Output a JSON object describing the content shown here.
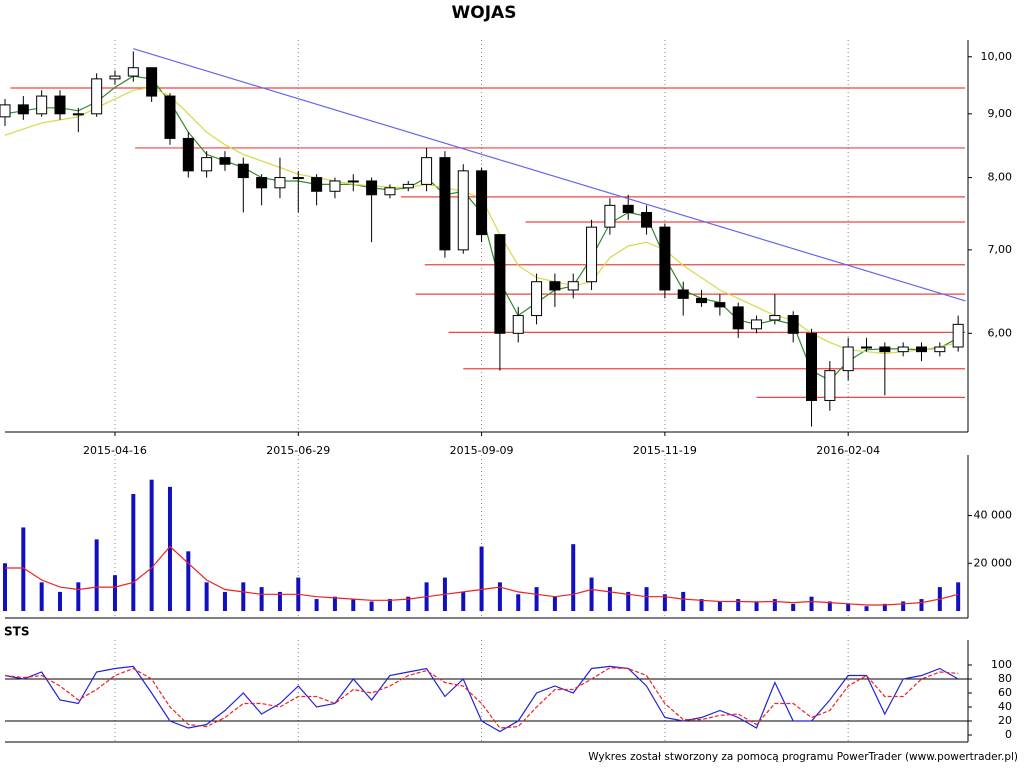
{
  "chart_data": [
    {
      "type": "candlestick",
      "title": "WOJAS",
      "categories": [
        null,
        null,
        null,
        null,
        null,
        null,
        "2015-04-16",
        null,
        null,
        null,
        null,
        null,
        null,
        null,
        null,
        null,
        "2015-06-29",
        null,
        null,
        null,
        null,
        null,
        null,
        null,
        null,
        null,
        "2015-09-09",
        null,
        null,
        null,
        null,
        null,
        null,
        null,
        null,
        null,
        "2015-11-19",
        null,
        null,
        null,
        null,
        null,
        null,
        null,
        null,
        null,
        "2016-02-04",
        null,
        null,
        null,
        null,
        null,
        null
      ],
      "open": [
        8.95,
        9.15,
        9.0,
        9.3,
        9.0,
        9.0,
        9.6,
        9.65,
        9.8,
        9.3,
        8.6,
        8.1,
        8.3,
        8.2,
        8.0,
        7.85,
        8.0,
        8.0,
        7.8,
        7.95,
        7.95,
        7.75,
        7.85,
        7.9,
        8.3,
        7.0,
        8.1,
        7.2,
        6.0,
        6.2,
        6.6,
        6.5,
        6.6,
        7.3,
        7.6,
        7.5,
        7.3,
        6.5,
        6.4,
        6.35,
        6.3,
        6.05,
        6.15,
        6.2,
        6.0,
        5.3,
        5.6,
        5.85,
        5.85,
        5.8,
        5.85,
        5.8,
        5.85
      ],
      "high": [
        9.25,
        9.3,
        9.4,
        9.4,
        9.1,
        9.7,
        9.75,
        10.1,
        9.8,
        9.35,
        8.7,
        8.4,
        8.4,
        8.3,
        8.05,
        8.3,
        8.1,
        8.05,
        8.0,
        8.05,
        8.0,
        7.9,
        7.95,
        8.45,
        8.4,
        8.2,
        8.15,
        7.2,
        6.3,
        6.7,
        6.7,
        6.7,
        7.4,
        7.7,
        7.75,
        7.6,
        7.35,
        6.6,
        6.5,
        6.45,
        6.35,
        6.2,
        6.45,
        6.25,
        6.05,
        5.7,
        5.95,
        5.95,
        5.9,
        5.9,
        5.9,
        5.9,
        6.2
      ],
      "low": [
        8.8,
        8.9,
        8.95,
        8.9,
        8.7,
        8.95,
        9.5,
        9.55,
        9.2,
        8.5,
        8.0,
        8.0,
        8.1,
        7.5,
        7.6,
        7.7,
        7.5,
        7.6,
        7.7,
        7.8,
        7.1,
        7.7,
        7.8,
        7.8,
        6.9,
        6.95,
        7.1,
        5.6,
        5.9,
        6.1,
        6.3,
        6.4,
        6.5,
        7.2,
        7.4,
        7.2,
        6.4,
        6.2,
        6.3,
        6.2,
        5.95,
        6.0,
        6.1,
        5.9,
        5.05,
        5.2,
        5.5,
        5.8,
        5.35,
        5.75,
        5.7,
        5.75,
        5.8
      ],
      "close": [
        9.15,
        9.0,
        9.3,
        9.0,
        9.0,
        9.6,
        9.65,
        9.8,
        9.3,
        8.6,
        8.1,
        8.3,
        8.2,
        8.0,
        7.85,
        8.0,
        8.0,
        7.8,
        7.95,
        7.95,
        7.75,
        7.85,
        7.9,
        8.3,
        7.0,
        8.1,
        7.2,
        6.0,
        6.2,
        6.6,
        6.5,
        6.6,
        7.3,
        7.6,
        7.5,
        7.3,
        6.5,
        6.4,
        6.35,
        6.3,
        6.05,
        6.15,
        6.2,
        6.0,
        5.3,
        5.6,
        5.85,
        5.85,
        5.8,
        5.85,
        5.8,
        5.85,
        6.1
      ],
      "lines": [
        {
          "color": "#2e8b2e",
          "values": [
            9.0,
            9.05,
            9.1,
            9.1,
            9.05,
            9.2,
            9.45,
            9.65,
            9.6,
            9.2,
            8.7,
            8.35,
            8.25,
            8.15,
            8.0,
            7.95,
            7.95,
            7.9,
            7.9,
            7.9,
            7.85,
            7.82,
            7.85,
            8.0,
            7.75,
            7.8,
            7.5,
            6.6,
            6.2,
            6.35,
            6.5,
            6.55,
            6.9,
            7.35,
            7.5,
            7.45,
            6.9,
            6.5,
            6.4,
            6.35,
            6.15,
            6.1,
            6.15,
            6.1,
            5.6,
            5.5,
            5.7,
            5.82,
            5.83,
            5.83,
            5.82,
            5.84,
            5.95
          ]
        },
        {
          "color": "#d8d84a",
          "values": [
            8.65,
            8.75,
            8.85,
            8.9,
            8.95,
            9.1,
            9.25,
            9.4,
            9.45,
            9.3,
            9.0,
            8.7,
            8.5,
            8.35,
            8.25,
            8.15,
            8.05,
            8.0,
            7.95,
            7.9,
            7.88,
            7.86,
            7.85,
            7.9,
            7.85,
            7.8,
            7.7,
            7.2,
            6.8,
            6.65,
            6.6,
            6.55,
            6.6,
            6.9,
            7.05,
            7.1,
            7.0,
            6.8,
            6.65,
            6.5,
            6.4,
            6.3,
            6.2,
            6.15,
            6.0,
            5.9,
            5.82,
            5.8,
            5.78,
            5.8,
            5.82,
            5.85,
            5.9
          ]
        }
      ],
      "levels": [
        {
          "value": 9.44,
          "from": 0.3
        },
        {
          "value": 8.45,
          "from": 7.1
        },
        {
          "value": 7.72,
          "from": 21.6
        },
        {
          "value": 7.37,
          "from": 28.4
        },
        {
          "value": 6.81,
          "from": 22.9
        },
        {
          "value": 6.45,
          "from": 22.4
        },
        {
          "value": 6.01,
          "from": 24.2
        },
        {
          "value": 5.62,
          "from": 25.0
        },
        {
          "value": 5.33,
          "from": 41.0
        }
      ],
      "level_color": "#ee4444",
      "trendline": {
        "x": [
          7,
          52.4
        ],
        "y": [
          10.15,
          6.37
        ],
        "color": "#6666ee"
      },
      "ylim": [
        5,
        10.22
      ],
      "log": true,
      "yticks": [
        {
          "value": 6,
          "label": "6,00"
        },
        {
          "value": 7,
          "label": "7,00"
        },
        {
          "value": 8,
          "label": "8,00"
        },
        {
          "value": 9,
          "label": "9,00"
        },
        {
          "value": 10,
          "label": "10,00"
        }
      ]
    },
    {
      "type": "bar",
      "color": "#1010c0",
      "values": [
        20000,
        35000,
        12000,
        8000,
        12000,
        30000,
        15000,
        49000,
        55000,
        52000,
        25000,
        12000,
        8000,
        12000,
        10000,
        8000,
        14000,
        5000,
        6000,
        5000,
        4000,
        5000,
        6000,
        12000,
        14000,
        8000,
        27000,
        12000,
        7000,
        10000,
        6000,
        28000,
        14000,
        10000,
        8000,
        10000,
        7000,
        8000,
        5000,
        4000,
        5000,
        4000,
        5000,
        3000,
        6000,
        4000,
        3000,
        2000,
        3000,
        4000,
        5000,
        10000,
        12000
      ],
      "lines": [
        {
          "color": "#ee2222",
          "values": [
            18000,
            18000,
            13000,
            10000,
            9000,
            10000,
            10000,
            12000,
            18000,
            27000,
            20000,
            13000,
            9000,
            8000,
            7000,
            7000,
            7000,
            6000,
            5500,
            5000,
            4500,
            4500,
            5000,
            6000,
            7000,
            8000,
            9000,
            10000,
            8000,
            7000,
            6000,
            7000,
            9000,
            8000,
            7000,
            6000,
            6000,
            5000,
            4500,
            4000,
            4000,
            3800,
            4000,
            3500,
            4000,
            3500,
            3000,
            2500,
            2500,
            3000,
            3500,
            5000,
            7000
          ]
        }
      ],
      "ylim": [
        0,
        62000
      ],
      "yticks": [
        {
          "value": 20000,
          "label": "20 000"
        },
        {
          "value": 40000,
          "label": "40 000"
        }
      ]
    },
    {
      "type": "line",
      "title": "STS",
      "series": [
        {
          "color": "#2222dd",
          "values": [
            85,
            80,
            90,
            50,
            45,
            90,
            95,
            98,
            60,
            20,
            10,
            15,
            35,
            60,
            30,
            45,
            70,
            40,
            45,
            80,
            50,
            85,
            90,
            95,
            55,
            80,
            20,
            5,
            20,
            60,
            70,
            60,
            95,
            98,
            95,
            70,
            25,
            20,
            25,
            35,
            25,
            10,
            75,
            20,
            20,
            50,
            85,
            85,
            30,
            80,
            85,
            95,
            80
          ]
        },
        {
          "color": "#ee2222",
          "dashed": true,
          "values": [
            85,
            82,
            85,
            70,
            50,
            65,
            85,
            95,
            80,
            40,
            15,
            12,
            25,
            45,
            45,
            40,
            55,
            55,
            45,
            65,
            60,
            70,
            85,
            92,
            75,
            70,
            45,
            10,
            12,
            40,
            65,
            65,
            80,
            96,
            95,
            85,
            45,
            22,
            22,
            28,
            30,
            15,
            45,
            45,
            25,
            35,
            70,
            85,
            55,
            55,
            80,
            90,
            88
          ]
        }
      ],
      "levels": [
        80,
        20
      ],
      "ylim": [
        0,
        100
      ],
      "yticks": [
        0,
        20,
        40,
        60,
        80,
        100
      ]
    }
  ],
  "footer": "Wykres został stworzony za pomocą programu PowerTrader (www.powertrader.pl)"
}
